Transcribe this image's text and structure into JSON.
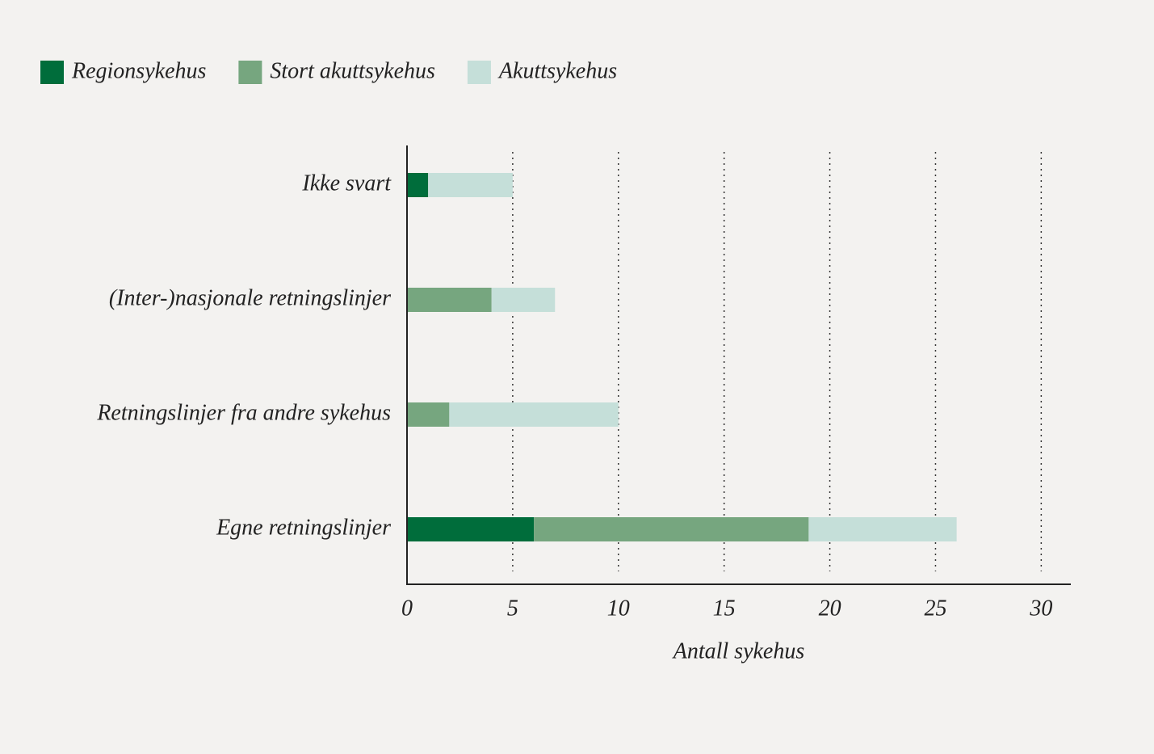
{
  "chart_data": {
    "type": "stacked-bar-horizontal",
    "categories": [
      "Ikke svart",
      "(Inter-)nasjonale retningslinjer",
      "Retningslinjer fra andre sykehus",
      "Egne retningslinjer"
    ],
    "series": [
      {
        "name": "Regionsykehus",
        "color": "#006d3b",
        "values": [
          1,
          0,
          0,
          6
        ]
      },
      {
        "name": "Stort akuttsykehus",
        "color": "#76a67f",
        "values": [
          0,
          4,
          2,
          13
        ]
      },
      {
        "name": "Akuttsykehus",
        "color": "#c5dfd9",
        "values": [
          4,
          3,
          8,
          7
        ]
      }
    ],
    "xlabel": "Antall sykehus",
    "xlim": [
      0,
      31.4
    ],
    "xticks": [
      0,
      5,
      10,
      15,
      20,
      25,
      30
    ],
    "grid": true,
    "legend": "top-left"
  }
}
